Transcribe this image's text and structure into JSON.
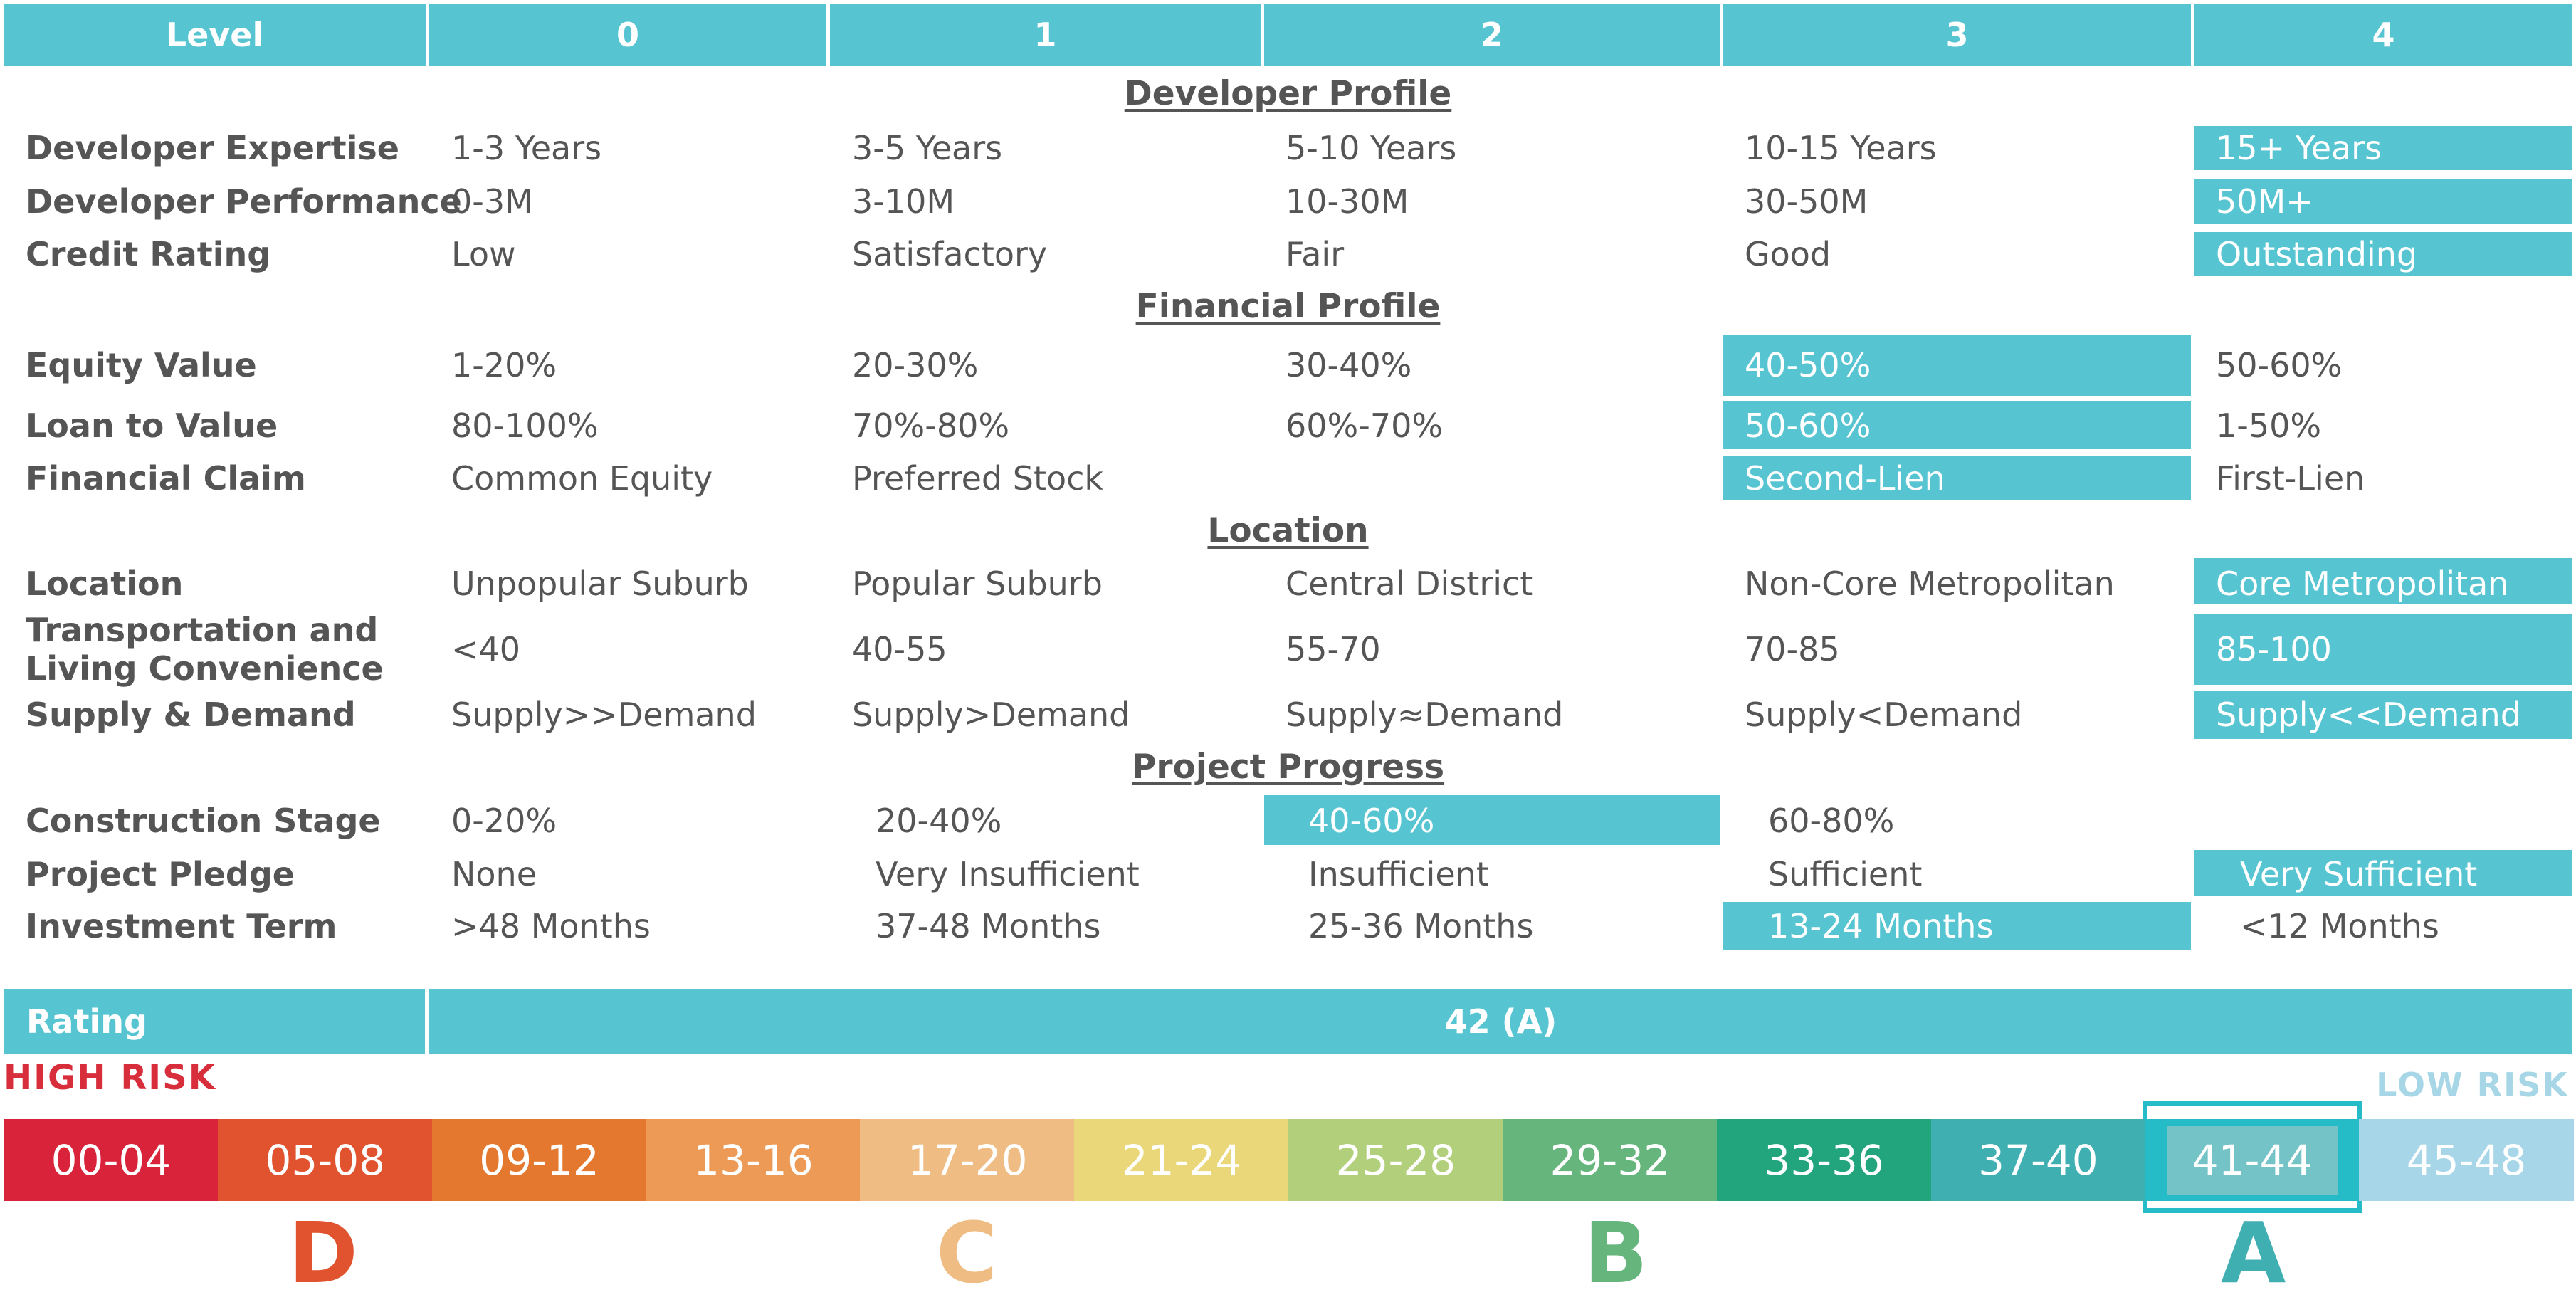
{
  "header": {
    "level_label": "Level",
    "levels": [
      "0",
      "1",
      "2",
      "3",
      "4"
    ]
  },
  "sections": {
    "developer": "Developer Profile",
    "financial": "Financial Profile",
    "location": "Location",
    "progress": "Project Progress"
  },
  "rows": {
    "developer_expertise": {
      "label": "Developer Expertise",
      "values": [
        "1-3 Years",
        "3-5 Years",
        "5-10 Years",
        "10-15 Years",
        "15+ Years"
      ],
      "selected": 4
    },
    "developer_performance": {
      "label": "Developer Performance",
      "values": [
        "0-3M",
        "3-10M",
        "10-30M",
        "30-50M",
        "50M+"
      ],
      "selected": 4
    },
    "credit_rating": {
      "label": "Credit Rating",
      "values": [
        "Low",
        "Satisfactory",
        "Fair",
        "Good",
        "Outstanding"
      ],
      "selected": 4
    },
    "equity_value": {
      "label": "Equity Value",
      "values": [
        "1-20%",
        "20-30%",
        "30-40%",
        "40-50%",
        "50-60%"
      ],
      "selected": 3
    },
    "loan_to_value": {
      "label": "Loan to Value",
      "values": [
        "80-100%",
        "70%-80%",
        "60%-70%",
        "50-60%",
        "1-50%"
      ],
      "selected": 3
    },
    "financial_claim": {
      "label": "Financial Claim",
      "values": [
        "Common Equity",
        "Preferred Stock",
        "",
        "Second-Lien",
        "First-Lien"
      ],
      "selected": 3
    },
    "location": {
      "label": "Location",
      "values": [
        "Unpopular Suburb",
        "Popular Suburb",
        "Central District",
        "Non-Core Metropolitan",
        "Core Metropolitan"
      ],
      "selected": 4
    },
    "transportation": {
      "label_line1": "Transportation and",
      "label_line2": "Living Convenience",
      "values": [
        "<40",
        "40-55",
        "55-70",
        "70-85",
        "85-100"
      ],
      "selected": 4
    },
    "supply_demand": {
      "label": "Supply & Demand",
      "values": [
        "Supply>>Demand",
        "Supply>Demand",
        "Supply≈Demand",
        "Supply<Demand",
        "Supply<<Demand"
      ],
      "selected": 4
    },
    "construction_stage": {
      "label": "Construction Stage",
      "values": [
        "0-20%",
        "20-40%",
        "40-60%",
        "60-80%",
        ""
      ],
      "selected": 2
    },
    "project_pledge": {
      "label": "Project Pledge",
      "values": [
        "None",
        "Very Insufficient",
        "Insufficient",
        "Sufficient",
        "Very Sufficient"
      ],
      "selected": 4
    },
    "investment_term": {
      "label": "Investment Term",
      "values": [
        ">48 Months",
        "37-48 Months",
        "25-36 Months",
        "13-24 Months",
        "<12 Months"
      ],
      "selected": 3
    }
  },
  "rating": {
    "label": "Rating",
    "value": "42 (A)"
  },
  "risk": {
    "high": "HIGH RISK",
    "low": "LOW RISK"
  },
  "scale": {
    "segments": [
      "00-04",
      "05-08",
      "09-12",
      "13-16",
      "17-20",
      "21-24",
      "25-28",
      "29-32",
      "33-36",
      "37-40",
      "41-44",
      "45-48"
    ],
    "colors": [
      "#d8233a",
      "#e0532e",
      "#e4782f",
      "#ec9a55",
      "#efbd83",
      "#e9d77a",
      "#b2cf7c",
      "#65b57c",
      "#22a47d",
      "#3fafb2",
      "#25bcc8",
      "#a6d6e8"
    ],
    "selected_index": 10
  },
  "grades": [
    {
      "letter": "D",
      "color": "#e0532e"
    },
    {
      "letter": "C",
      "color": "#efbd83"
    },
    {
      "letter": "B",
      "color": "#65b57c"
    },
    {
      "letter": "A",
      "color": "#3fafb2"
    }
  ]
}
